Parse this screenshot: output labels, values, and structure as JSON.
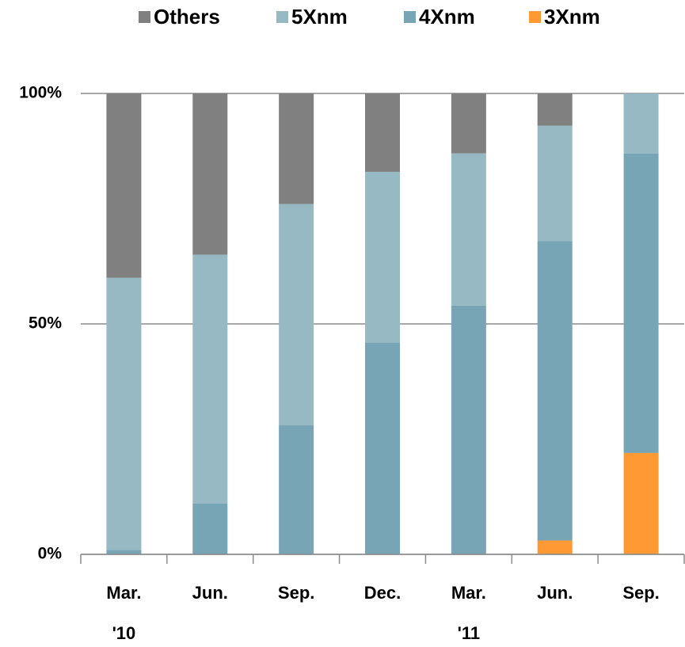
{
  "chart_data": {
    "type": "stacked_bar",
    "categories": [
      [
        "Mar.",
        "'10"
      ],
      [
        "Jun."
      ],
      [
        "Sep."
      ],
      [
        "Dec."
      ],
      [
        "Mar.",
        "'11"
      ],
      [
        "Jun."
      ],
      [
        "Sep."
      ]
    ],
    "series": [
      {
        "name": "Others",
        "color": "#808080",
        "values": [
          40,
          35,
          24,
          17,
          13,
          7,
          0
        ]
      },
      {
        "name": "5Xnm",
        "color": "#97b9c4",
        "values": [
          59,
          54,
          48,
          37,
          33,
          25,
          13
        ]
      },
      {
        "name": "4Xnm",
        "color": "#78a5b5",
        "values": [
          1,
          11,
          28,
          46,
          54,
          65,
          65
        ]
      },
      {
        "name": "3Xnm",
        "color": "#ff9933",
        "values": [
          0,
          0,
          0,
          0,
          0,
          3,
          22
        ]
      }
    ],
    "ylim": [
      0,
      100
    ],
    "yticks": [
      {
        "value": 0,
        "label": "0%"
      },
      {
        "value": 50,
        "label": "50%"
      },
      {
        "value": 100,
        "label": "100%"
      }
    ],
    "grid": true,
    "legend": "top"
  }
}
